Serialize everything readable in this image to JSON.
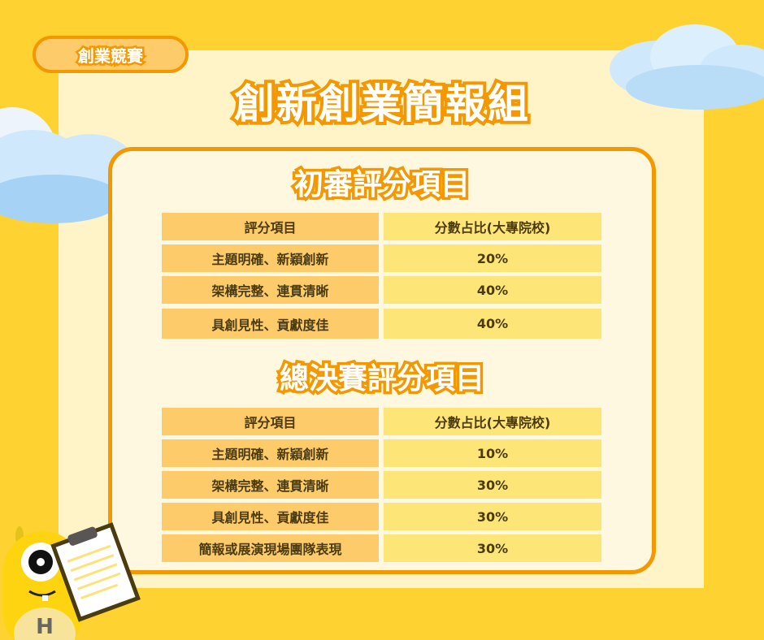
{
  "badge": "創業競賽",
  "title": "創新創業簡報組",
  "preliminary": {
    "heading": "初審評分項目",
    "header": [
      "評分項目",
      "分數占比(大專院校)"
    ],
    "rows": [
      [
        "主題明確、新穎創新",
        "20%"
      ],
      [
        "架構完整、連貫清晰",
        "40%"
      ],
      [
        "具創見性、貢獻度佳",
        "40%"
      ]
    ]
  },
  "final": {
    "heading": "總決賽評分項目",
    "header": [
      "評分項目",
      "分數占比(大專院校)"
    ],
    "rows": [
      [
        "主題明確、新穎創新",
        "10%"
      ],
      [
        "架構完整、連貫清晰",
        "30%"
      ],
      [
        "具創見性、貢獻度佳",
        "30%"
      ],
      [
        "簡報或展演現場團隊表現",
        "30%"
      ]
    ]
  },
  "mascot": {
    "letter": "H"
  },
  "colors": {
    "background": "#fdd231",
    "accent": "#f39800",
    "left_cell": "#fecb6b",
    "right_cell": "#fee578"
  }
}
